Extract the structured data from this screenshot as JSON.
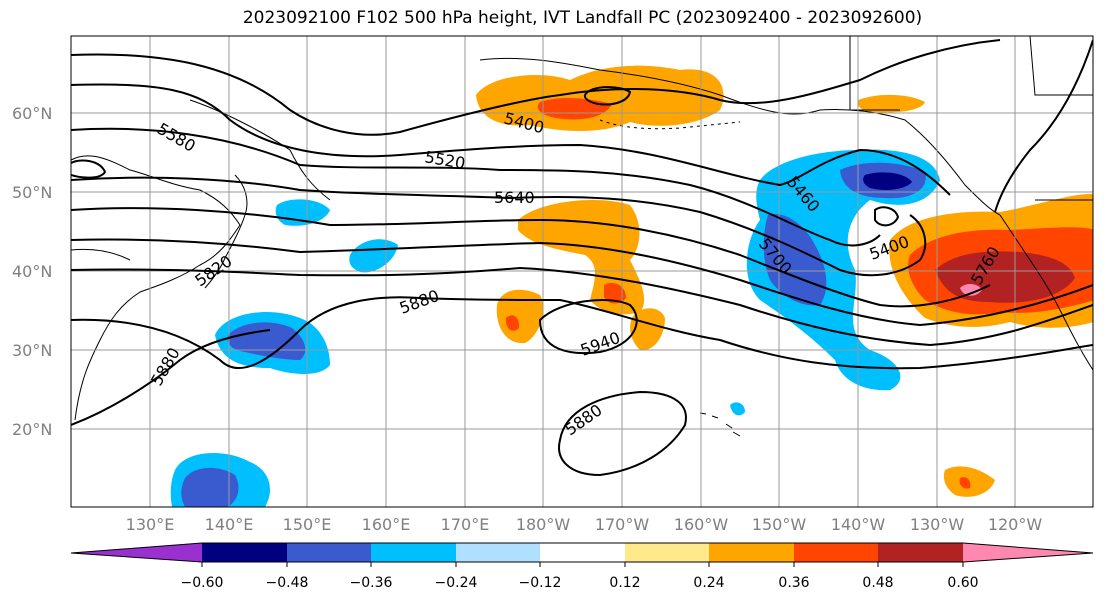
{
  "title": "2023092100 F102 500 hPa height, IVT Landfall PC (2023092400 - 2023092600)",
  "map": {
    "lat_labels": [
      "60°N",
      "50°N",
      "40°N",
      "30°N",
      "20°N"
    ],
    "lon_labels": [
      "130°E",
      "140°E",
      "150°E",
      "160°E",
      "170°E",
      "180°W",
      "170°W",
      "160°W",
      "150°W",
      "140°W",
      "130°W",
      "120°W"
    ],
    "contour_labels": [
      "5580",
      "5400",
      "5520",
      "5640",
      "5820",
      "5880",
      "5940",
      "5880",
      "5880",
      "5460",
      "5700",
      "5400",
      "5760"
    ]
  },
  "colorbar": {
    "colors": [
      "#9b30d0",
      "#000080",
      "#3a5bd0",
      "#00bfff",
      "#b0e0ff",
      "#ffffff",
      "#ffe98a",
      "#ffa500",
      "#ff4500",
      "#b22222",
      "#ff88b0",
      "#ff88b0"
    ],
    "tick_labels": [
      "−0.60",
      "−0.48",
      "−0.36",
      "−0.24",
      "−0.12",
      "0.12",
      "0.24",
      "0.36",
      "0.48",
      "0.60"
    ]
  }
}
